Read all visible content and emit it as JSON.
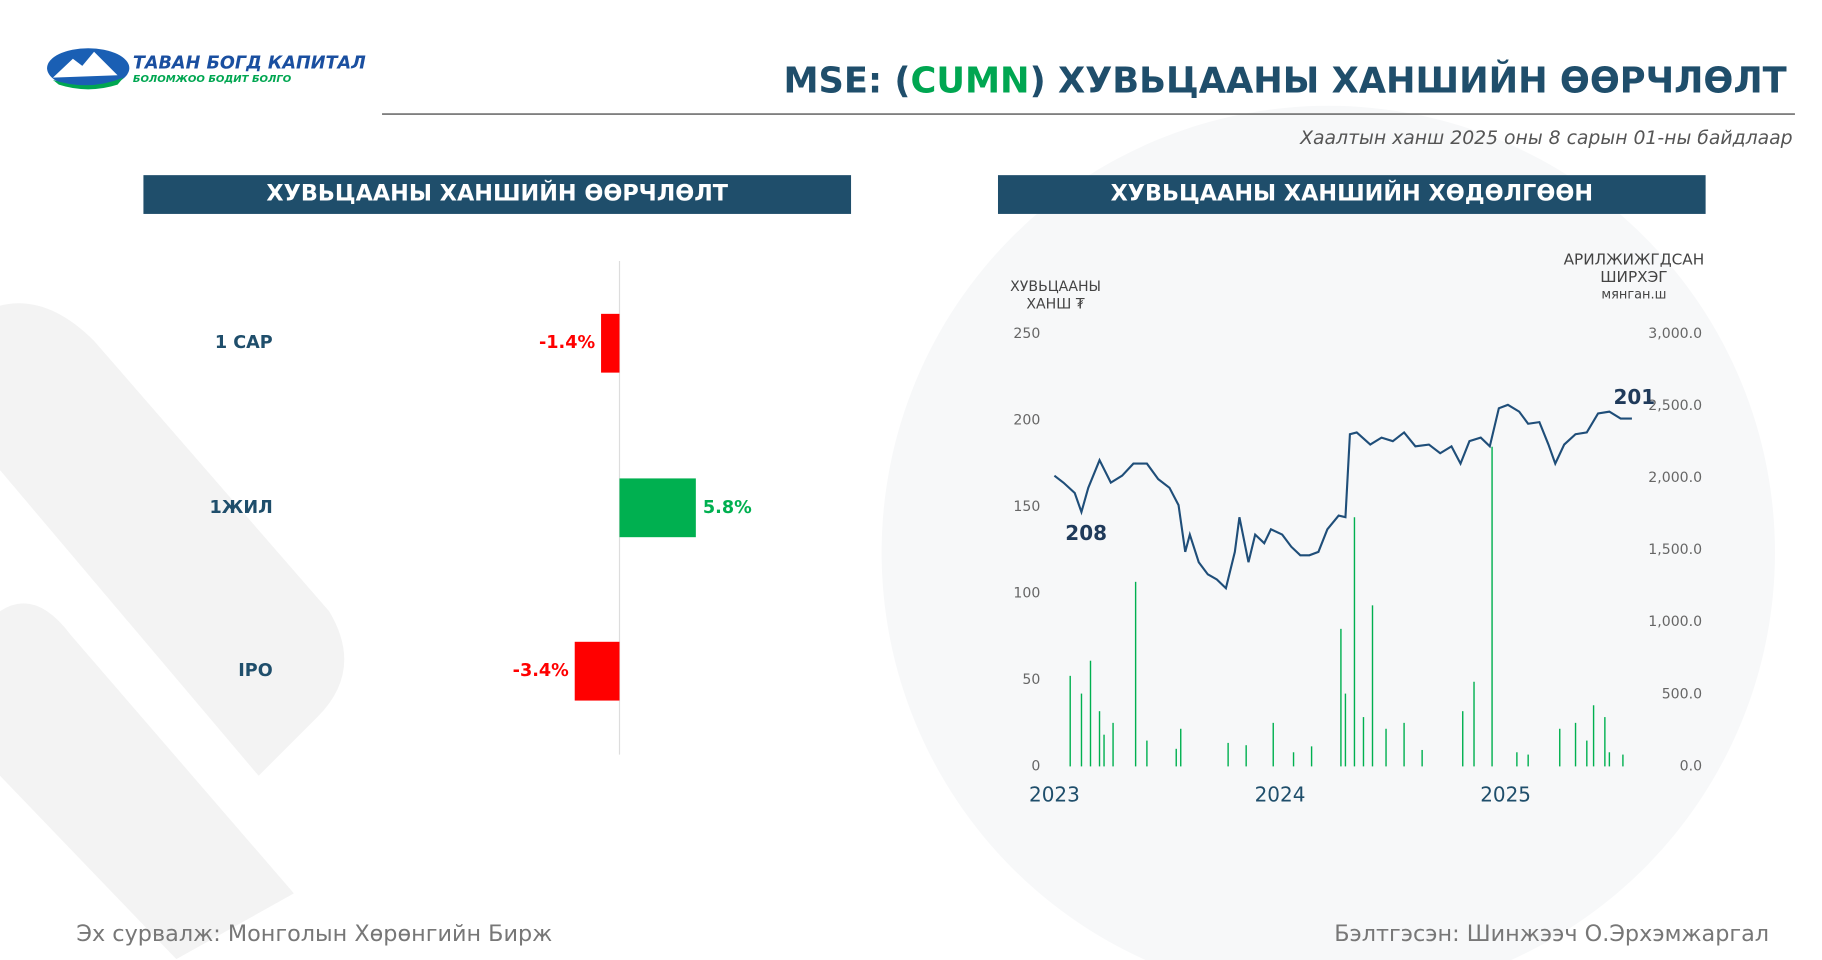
{
  "header": {
    "logo_name": "ТАВАН БОГД КАПИТАЛ",
    "logo_slogan": "БОЛОМЖОО БОДИТ БОЛГО",
    "title_prefix": "MSE: (",
    "ticker": "CUMN",
    "title_suffix": ") ХУВЬЦААНЫ ХАНШИЙН ӨӨРЧЛӨЛТ",
    "subtitle": "Хаалтын ханш 2025 оны 8 сарын 01-ны байдлаар"
  },
  "footer": {
    "source": "Эх сурвалж: Монголын Хөрөнгийн Бирж",
    "author": "Бэлтгэсэн: Шинжээч О.Эрхэмжаргал"
  },
  "chart_data": [
    {
      "type": "hbar",
      "title": "ХУВЬЦААНЫ ХАНШИЙН ӨӨРЧЛӨЛТ",
      "categories": [
        "1 САР",
        "1ЖИЛ",
        "IPO"
      ],
      "values": [
        -1.4,
        5.8,
        -3.4
      ],
      "value_labels": [
        "-1.4%",
        "5.8%",
        "-3.4%"
      ],
      "positive_color": "#00b050",
      "negative_color": "#ff0000"
    },
    {
      "type": "line-bar",
      "title": "ХУВЬЦААНЫ ХАНШИЙН ХӨДӨЛГӨӨН",
      "y_label": [
        "ХУВЬЦААНЫ",
        "ХАНШ ₮"
      ],
      "y2_label": [
        "АРИЛЖИЖГДСАН",
        "ШИРХЭГ",
        "мянган.ш"
      ],
      "xlim": [
        2023,
        2025.6
      ],
      "xticks": [
        2023,
        2024,
        2025
      ],
      "ylim": [
        0,
        250
      ],
      "yticks": [
        0,
        50,
        100,
        150,
        200,
        250
      ],
      "y2lim": [
        0,
        3000
      ],
      "y2ticks": [
        {
          "value": 0,
          "label": "0.0"
        },
        {
          "value": 500,
          "label": "500.0"
        },
        {
          "value": 1000,
          "label": "1,000.0"
        },
        {
          "value": 1500,
          "label": "1,500.0"
        },
        {
          "value": 2000,
          "label": "2,000.0"
        },
        {
          "value": 2500,
          "label": "2,500.0"
        },
        {
          "value": 3000,
          "label": "3,000.0"
        }
      ],
      "annotations": [
        "208",
        "201"
      ],
      "series": [
        {
          "type": "line",
          "color": "#1f4e79",
          "x": [
            2023.0,
            2023.04,
            2023.09,
            2023.12,
            2023.15,
            2023.2,
            2023.25,
            2023.3,
            2023.35,
            2023.41,
            2023.46,
            2023.51,
            2023.55,
            2023.58,
            2023.6,
            2023.64,
            2023.68,
            2023.72,
            2023.76,
            2023.8,
            2023.82,
            2023.86,
            2023.89,
            2023.93,
            2023.96,
            2024.01,
            2024.05,
            2024.09,
            2024.13,
            2024.17,
            2024.21,
            2024.26,
            2024.29,
            2024.31,
            2024.34,
            2024.4,
            2024.45,
            2024.5,
            2024.55,
            2024.6,
            2024.66,
            2024.71,
            2024.76,
            2024.8,
            2024.84,
            2024.89,
            2024.93,
            2024.97,
            2025.01,
            2025.06,
            2025.1,
            2025.15,
            2025.19,
            2025.22,
            2025.26,
            2025.31,
            2025.36,
            2025.41,
            2025.46,
            2025.51,
            2025.56
          ],
          "values": [
            168,
            164,
            158,
            147,
            161,
            177,
            164,
            168,
            175,
            175,
            166,
            161,
            151,
            124,
            134,
            118,
            111,
            108,
            103,
            124,
            144,
            118,
            134,
            129,
            137,
            134,
            127,
            122,
            122,
            124,
            137,
            145,
            144,
            192,
            193,
            186,
            190,
            188,
            193,
            185,
            186,
            181,
            185,
            175,
            188,
            190,
            185,
            207,
            209,
            205,
            198,
            199,
            186,
            175,
            186,
            192,
            193,
            204,
            205,
            201,
            201
          ]
        },
        {
          "type": "bar",
          "axis": "y2",
          "color": "#00b050",
          "x": [
            2023.07,
            2023.12,
            2023.16,
            2023.2,
            2023.22,
            2023.26,
            2023.36,
            2023.41,
            2023.54,
            2023.56,
            2023.77,
            2023.85,
            2023.97,
            2024.06,
            2024.14,
            2024.27,
            2024.29,
            2024.33,
            2024.37,
            2024.41,
            2024.47,
            2024.55,
            2024.63,
            2024.81,
            2024.86,
            2024.94,
            2025.05,
            2025.1,
            2025.24,
            2025.31,
            2025.36,
            2025.39,
            2025.44,
            2025.46,
            2025.52
          ],
          "values": [
            628,
            505,
            733,
            383,
            220,
            302,
            1280,
            179,
            122,
            261,
            163,
            147,
            302,
            98,
            139,
            954,
            505,
            1728,
            342,
            1117,
            261,
            302,
            114,
            383,
            587,
            2217,
            98,
            82,
            261,
            302,
            179,
            424,
            342,
            98,
            82
          ]
        }
      ]
    }
  ]
}
